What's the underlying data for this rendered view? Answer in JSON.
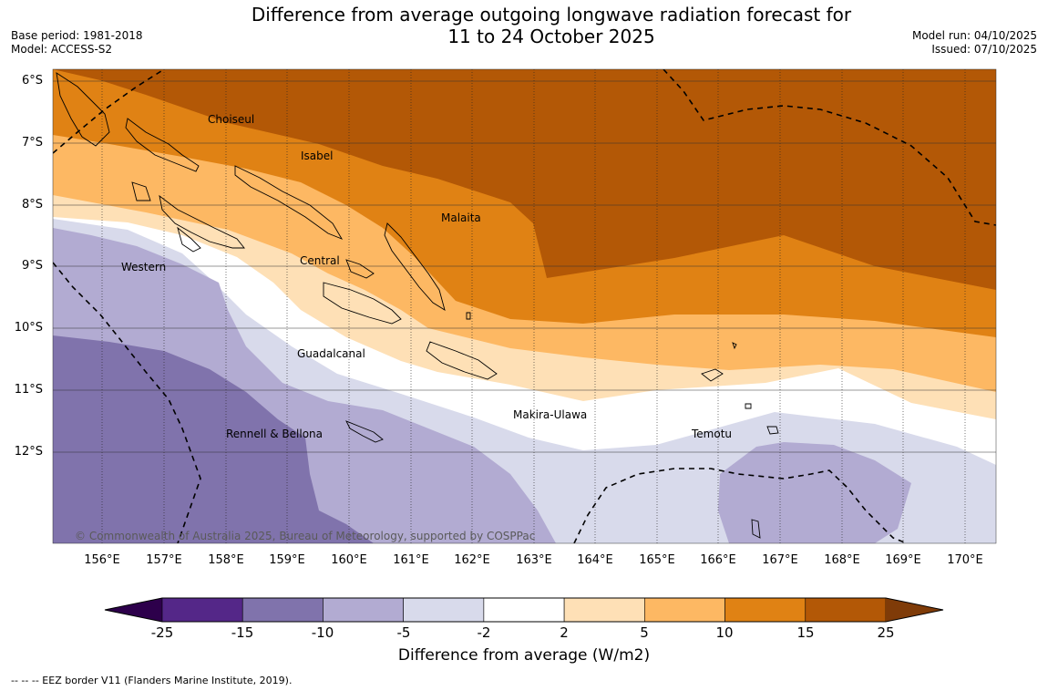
{
  "title": {
    "line1": "Difference from average outgoing longwave radiation forecast for",
    "line2": "11 to 24 October 2025"
  },
  "meta": {
    "base_period": "Base period: 1981-2018",
    "model": "Model: ACCESS-S2",
    "model_run": "Model run: 04/10/2025",
    "issued": "Issued: 07/10/2025"
  },
  "axes": {
    "latitudes": [
      "6°S",
      "7°S",
      "8°S",
      "9°S",
      "10°S",
      "11°S",
      "12°S"
    ],
    "longitudes": [
      "156°E",
      "157°E",
      "158°E",
      "159°E",
      "160°E",
      "161°E",
      "162°E",
      "163°E",
      "164°E",
      "165°E",
      "166°E",
      "167°E",
      "168°E",
      "169°E",
      "170°E"
    ]
  },
  "places": [
    "Choiseul",
    "Isabel",
    "Malaita",
    "Central",
    "Western",
    "Guadalcanal",
    "Makira-Ulawa",
    "Temotu",
    "Rennell & Bellona"
  ],
  "credit": "© Commonwealth of Australia 2025, Bureau of Meteorology, supported by COSPPac",
  "colorbar": {
    "ticks": [
      "-25",
      "-15",
      "-10",
      "-5",
      "-2",
      "2",
      "5",
      "10",
      "15",
      "25"
    ],
    "colors": [
      "#542788",
      "#8073ac",
      "#b2abd2",
      "#d8daeb",
      "#ffffff",
      "#fee0b6",
      "#fdb863",
      "#e08214",
      "#b35806"
    ],
    "under_color": "#2d004b",
    "over_color": "#7f3b08",
    "label": "Difference from average (W/m2)"
  },
  "eez_note": "--  --  -- EEZ border V11 (Flanders Marine Institute, 2019)."
}
